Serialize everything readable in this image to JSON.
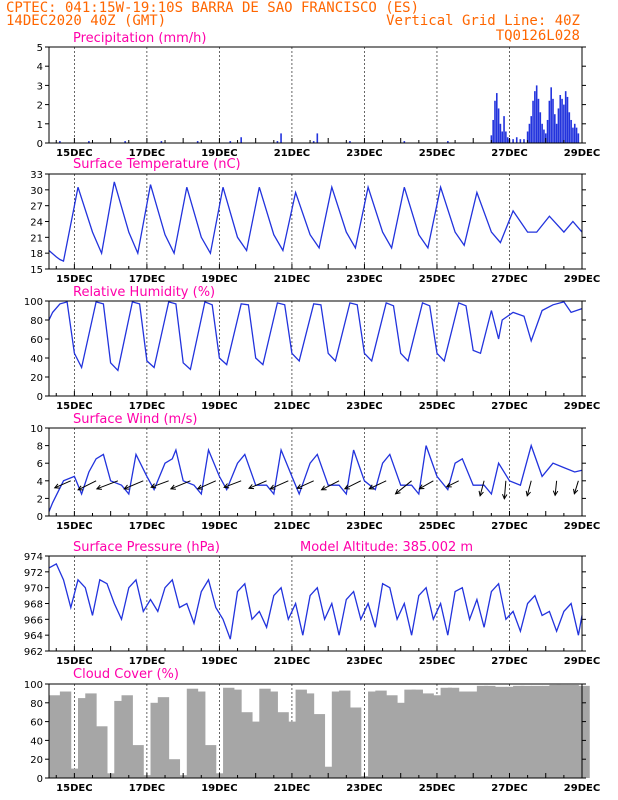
{
  "header": {
    "line1": "CPTEC:  041:15W-19:10S  BARRA DE SAO FRANCISCO (ES)",
    "line2": "14DEC2020 40Z (GMT)",
    "grid_note": "Vertical Grid Line: 40Z",
    "model_code": "TQ0126L028"
  },
  "colors": {
    "header": "#ff6600",
    "title": "#ff00aa",
    "series": "#2233dd",
    "cloud": "#a6a6a6",
    "arrow": "#000000"
  },
  "x_axis": {
    "labels": [
      "15DEC",
      "17DEC",
      "19DEC",
      "21DEC",
      "23DEC",
      "25DEC",
      "27DEC",
      "29DEC"
    ],
    "label_days": [
      15,
      17,
      19,
      21,
      23,
      25,
      27,
      29
    ],
    "range_days": [
      14.3,
      29.0
    ]
  },
  "chart_data": [
    {
      "type": "bar",
      "title": "Precipitation (mm/h)",
      "ylim": [
        0,
        5
      ],
      "yticks": [
        0,
        1,
        2,
        3,
        4,
        5
      ],
      "x": [
        14.6,
        15.4,
        16.4,
        17.4,
        18.4,
        19.3,
        19.6,
        20.6,
        20.7,
        21.6,
        21.7,
        22.6,
        24.1,
        25.3,
        26.5,
        26.55,
        26.6,
        26.65,
        26.7,
        26.75,
        26.8,
        26.85,
        26.9,
        26.95,
        27.0,
        27.1,
        27.2,
        27.3,
        27.4,
        27.5,
        27.55,
        27.6,
        27.65,
        27.7,
        27.75,
        27.8,
        27.85,
        27.9,
        27.95,
        28.0,
        28.05,
        28.1,
        28.15,
        28.2,
        28.25,
        28.3,
        28.35,
        28.4,
        28.45,
        28.5,
        28.55,
        28.6,
        28.65,
        28.7,
        28.75,
        28.8,
        28.85,
        28.9
      ],
      "values": [
        0.1,
        0.1,
        0.1,
        0.1,
        0.1,
        0.1,
        0.3,
        0.1,
        0.5,
        0.1,
        0.5,
        0.1,
        0.1,
        0.1,
        0.4,
        1.2,
        2.2,
        2.6,
        1.8,
        1.0,
        0.6,
        1.4,
        0.6,
        0.3,
        0.2,
        0.2,
        0.3,
        0.2,
        0.2,
        0.6,
        1.0,
        1.4,
        2.2,
        2.7,
        3.0,
        2.3,
        1.6,
        1.0,
        0.7,
        0.5,
        1.2,
        2.2,
        2.9,
        2.3,
        1.5,
        1.0,
        1.8,
        2.5,
        2.3,
        2.0,
        2.7,
        2.4,
        1.6,
        1.2,
        0.8,
        1.0,
        0.8,
        0.5
      ]
    },
    {
      "type": "line",
      "title": "Surface Temperature (nC)",
      "ylim": [
        15,
        33
      ],
      "yticks": [
        15,
        18,
        21,
        24,
        27,
        30,
        33
      ],
      "x": [
        14.3,
        14.5,
        14.6,
        14.7,
        15.0,
        15.1,
        15.5,
        15.75,
        16.1,
        16.5,
        16.75,
        17.1,
        17.5,
        17.75,
        18.1,
        18.5,
        18.75,
        19.1,
        19.5,
        19.75,
        20.1,
        20.5,
        20.75,
        21.1,
        21.5,
        21.75,
        22.1,
        22.5,
        22.75,
        23.1,
        23.5,
        23.75,
        24.1,
        24.5,
        24.75,
        25.1,
        25.5,
        25.75,
        26.1,
        26.5,
        26.75,
        27.1,
        27.5,
        27.75,
        28.1,
        28.5,
        28.75,
        29.0
      ],
      "values": [
        18.5,
        17.3,
        16.8,
        16.5,
        27,
        30.5,
        22,
        18,
        31.5,
        22,
        18,
        31,
        21.5,
        18,
        30.5,
        21,
        18,
        30.5,
        21,
        18.5,
        30.5,
        21.5,
        18.5,
        29.5,
        21.5,
        19,
        30.5,
        22,
        19,
        30.5,
        22,
        19,
        30.5,
        21.5,
        19,
        30.5,
        22,
        19.5,
        29.5,
        22,
        20,
        26,
        22,
        22,
        25,
        22,
        24,
        22
      ]
    },
    {
      "type": "line",
      "title": "Relative Humidity (%)",
      "ylim": [
        0,
        100
      ],
      "yticks": [
        0,
        20,
        40,
        60,
        80,
        100
      ],
      "x": [
        14.3,
        14.4,
        14.6,
        14.8,
        15.0,
        15.2,
        15.6,
        15.8,
        16.0,
        16.2,
        16.6,
        16.8,
        17.0,
        17.2,
        17.6,
        17.8,
        18.0,
        18.2,
        18.6,
        18.8,
        19.0,
        19.2,
        19.6,
        19.8,
        20.0,
        20.2,
        20.6,
        20.8,
        21.0,
        21.2,
        21.6,
        21.8,
        22.0,
        22.2,
        22.6,
        22.8,
        23.0,
        23.2,
        23.6,
        23.8,
        24.0,
        24.2,
        24.6,
        24.8,
        25.0,
        25.2,
        25.6,
        25.8,
        26.0,
        26.2,
        26.5,
        26.7,
        26.8,
        27.1,
        27.4,
        27.6,
        27.9,
        28.2,
        28.5,
        28.7,
        29.0
      ],
      "values": [
        80,
        88,
        97,
        99,
        45,
        30,
        99,
        97,
        35,
        27,
        99,
        97,
        37,
        30,
        99,
        97,
        35,
        28,
        99,
        96,
        40,
        33,
        97,
        96,
        40,
        33,
        98,
        96,
        45,
        37,
        97,
        96,
        45,
        37,
        98,
        96,
        45,
        37,
        98,
        95,
        45,
        37,
        98,
        95,
        45,
        37,
        98,
        95,
        48,
        45,
        90,
        60,
        80,
        88,
        84,
        58,
        90,
        96,
        99,
        88,
        92
      ]
    },
    {
      "type": "line",
      "title": "Surface Wind (m/s)",
      "ylim": [
        0,
        10
      ],
      "yticks": [
        0,
        2,
        4,
        6,
        8,
        10
      ],
      "x": [
        14.3,
        14.4,
        14.7,
        15.0,
        15.2,
        15.4,
        15.6,
        15.8,
        16.0,
        16.3,
        16.5,
        16.7,
        17.0,
        17.2,
        17.5,
        17.7,
        17.8,
        18.0,
        18.3,
        18.5,
        18.7,
        19.0,
        19.2,
        19.5,
        19.7,
        20.0,
        20.3,
        20.5,
        20.7,
        21.0,
        21.2,
        21.5,
        21.7,
        22.0,
        22.3,
        22.5,
        22.7,
        23.0,
        23.3,
        23.5,
        23.7,
        24.0,
        24.3,
        24.5,
        24.7,
        25.0,
        25.3,
        25.5,
        25.7,
        26.0,
        26.3,
        26.5,
        26.7,
        27.0,
        27.3,
        27.6,
        27.9,
        28.2,
        28.5,
        28.8,
        29.0
      ],
      "values": [
        0.5,
        1.5,
        4,
        4.5,
        2.5,
        5,
        6.5,
        7,
        4,
        3.5,
        2.5,
        7,
        4.5,
        3,
        6,
        6.5,
        7.5,
        4,
        3.5,
        2.5,
        7.5,
        4.5,
        3,
        6,
        7,
        3.5,
        3.5,
        2.5,
        7.5,
        4.5,
        2.5,
        6,
        7,
        3.5,
        3.5,
        2.5,
        7.5,
        4,
        3,
        6,
        7,
        3.5,
        3.5,
        2.5,
        8,
        4.5,
        3,
        6,
        6.5,
        3.5,
        3.5,
        2.5,
        6,
        4,
        3.5,
        8,
        4.5,
        6,
        5.5,
        5,
        5.2
      ],
      "arrows": {
        "x": [
          14.9,
          15.6,
          16.2,
          16.9,
          17.6,
          18.2,
          18.9,
          19.6,
          20.3,
          20.9,
          21.6,
          22.3,
          22.9,
          23.6,
          24.3,
          24.9,
          25.6,
          26.3,
          26.9,
          27.6,
          28.3,
          28.9
        ],
        "u": [
          -3.2,
          -3.6,
          -4.2,
          -3.8,
          -3.5,
          -3.9,
          -3.6,
          -3.4,
          -3.5,
          -3.6,
          -3.3,
          -3.5,
          -3.2,
          -3.4,
          -3.2,
          -2.8,
          -2.4,
          -0.8,
          -0.3,
          -0.8,
          -0.3,
          -0.8
        ],
        "v": [
          -1.4,
          -1.8,
          -1.6,
          -1.6,
          -1.3,
          -1.6,
          -1.6,
          -1.3,
          -1.5,
          -1.6,
          -1.5,
          -1.8,
          -1.6,
          -1.6,
          -2.6,
          -1.6,
          -1.2,
          -3.0,
          -3.6,
          -3.0,
          -2.9,
          -2.6
        ]
      }
    },
    {
      "type": "line",
      "title": "Surface Pressure (hPa)",
      "subtitle": "Model Altitude: 385.002 m",
      "ylim": [
        962,
        974
      ],
      "yticks": [
        962,
        964,
        966,
        968,
        970,
        972,
        974
      ],
      "x": [
        14.3,
        14.5,
        14.7,
        14.9,
        15.1,
        15.3,
        15.5,
        15.7,
        15.9,
        16.1,
        16.3,
        16.5,
        16.7,
        16.9,
        17.1,
        17.3,
        17.5,
        17.7,
        17.9,
        18.1,
        18.3,
        18.5,
        18.7,
        18.9,
        19.1,
        19.3,
        19.5,
        19.7,
        19.9,
        20.1,
        20.3,
        20.5,
        20.7,
        20.9,
        21.1,
        21.3,
        21.5,
        21.7,
        21.9,
        22.1,
        22.3,
        22.5,
        22.7,
        22.9,
        23.1,
        23.3,
        23.5,
        23.7,
        23.9,
        24.1,
        24.3,
        24.5,
        24.7,
        24.9,
        25.1,
        25.3,
        25.5,
        25.7,
        25.9,
        26.1,
        26.3,
        26.5,
        26.7,
        26.9,
        27.1,
        27.3,
        27.5,
        27.7,
        27.9,
        28.1,
        28.3,
        28.5,
        28.7,
        28.9,
        29.0
      ],
      "values": [
        972.5,
        973,
        971,
        967.5,
        971,
        970,
        966.5,
        971,
        970.5,
        968,
        966,
        970,
        971,
        967,
        968.5,
        967,
        970,
        971,
        967.5,
        968,
        965.5,
        969.5,
        971,
        967.5,
        966,
        963.5,
        969.5,
        970.5,
        966,
        967,
        965,
        969,
        970,
        966,
        968,
        964,
        969,
        970,
        966,
        968,
        964,
        968.5,
        969.5,
        966,
        968,
        965,
        970.5,
        970,
        966,
        968,
        964,
        969,
        970,
        966,
        968,
        964,
        969.5,
        970,
        966,
        968.5,
        965,
        969.5,
        970.5,
        966,
        967,
        964.5,
        968,
        969,
        966.5,
        967,
        964.5,
        967,
        968,
        964,
        966.5
      ]
    },
    {
      "type": "bar",
      "title": "Cloud Cover (%)",
      "ylim": [
        0,
        100
      ],
      "yticks": [
        0,
        20,
        40,
        60,
        80,
        100
      ],
      "x": [
        14.3,
        14.6,
        14.9,
        15.1,
        15.3,
        15.6,
        15.9,
        16.1,
        16.3,
        16.6,
        16.9,
        17.1,
        17.3,
        17.6,
        17.9,
        18.1,
        18.3,
        18.6,
        18.9,
        19.1,
        19.3,
        19.6,
        19.9,
        20.1,
        20.3,
        20.6,
        20.9,
        21.1,
        21.3,
        21.6,
        21.9,
        22.1,
        22.3,
        22.6,
        22.9,
        23.1,
        23.3,
        23.6,
        23.9,
        24.1,
        24.3,
        24.6,
        24.9,
        25.1,
        25.3,
        25.6,
        25.9,
        26.1,
        26.3,
        26.6,
        26.9,
        27.1,
        27.3,
        27.6,
        27.9,
        28.1,
        28.3,
        28.6,
        28.9
      ],
      "values": [
        88,
        92,
        10,
        85,
        90,
        55,
        5,
        82,
        88,
        35,
        3,
        80,
        86,
        20,
        3,
        95,
        92,
        35,
        5,
        96,
        94,
        70,
        60,
        95,
        92,
        70,
        60,
        94,
        90,
        68,
        12,
        92,
        93,
        75,
        2,
        92,
        93,
        88,
        80,
        94,
        94,
        90,
        88,
        96,
        96,
        92,
        92,
        98,
        98,
        97,
        97,
        98,
        98,
        98,
        98,
        99,
        99,
        99,
        98
      ]
    }
  ]
}
